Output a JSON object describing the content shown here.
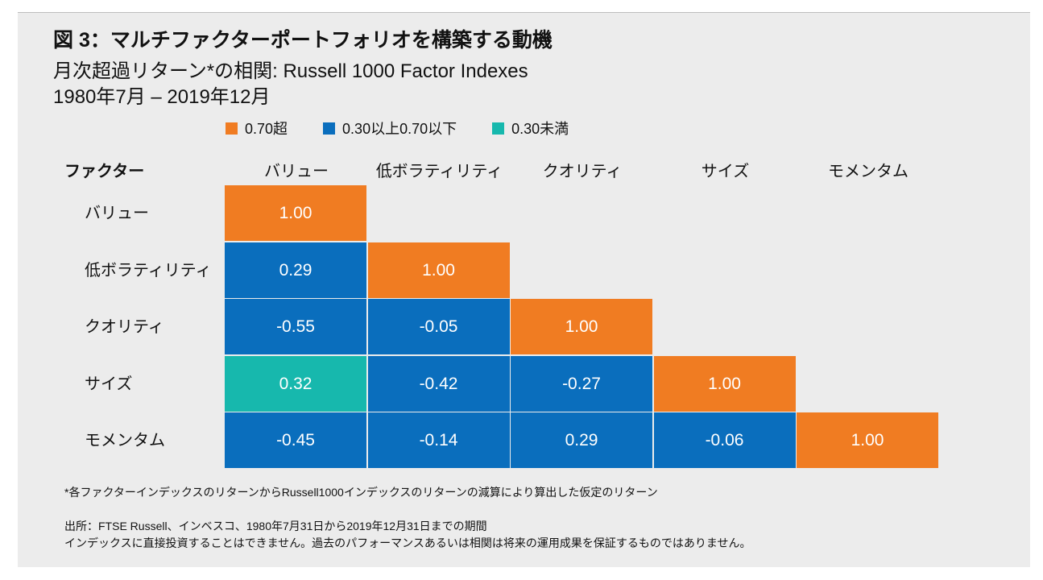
{
  "title": "図 3：マルチファクターポートフォリオを構築する動機",
  "subtitle": "月次超過リターン*の相関: Russell 1000 Factor Indexes",
  "period": "1980年7月 – 2019年12月",
  "colors": {
    "high": "#f07c22",
    "mid": "#0a6ebd",
    "low": "#17b8ad",
    "background": "#ececec"
  },
  "legend": [
    {
      "label": "0.70超",
      "color": "#f07c22"
    },
    {
      "label": "0.30以上0.70以下",
      "color": "#0a6ebd"
    },
    {
      "label": "0.30未満",
      "color": "#17b8ad"
    }
  ],
  "header_label": "ファクター",
  "chart_data": {
    "type": "heatmap",
    "title": "図 3：マルチファクターポートフォリオを構築する動機",
    "subtitle": "月次超過リターン*の相関: Russell 1000 Factor Indexes",
    "columns": [
      "バリュー",
      "低ボラティリティ",
      "クオリティ",
      "サイズ",
      "モメンタム"
    ],
    "rows": [
      "バリュー",
      "低ボラティリティ",
      "クオリティ",
      "サイズ",
      "モメンタム"
    ],
    "values": [
      [
        "1.00",
        null,
        null,
        null,
        null
      ],
      [
        "0.29",
        "1.00",
        null,
        null,
        null
      ],
      [
        "-0.55",
        "-0.05",
        "1.00",
        null,
        null
      ],
      [
        "0.32",
        "-0.42",
        "-0.27",
        "1.00",
        null
      ],
      [
        "-0.45",
        "-0.14",
        "0.29",
        "-0.06",
        "1.00"
      ]
    ],
    "categories": [
      [
        "high",
        null,
        null,
        null,
        null
      ],
      [
        "mid",
        "high",
        null,
        null,
        null
      ],
      [
        "mid",
        "mid",
        "high",
        null,
        null
      ],
      [
        "low",
        "mid",
        "mid",
        "high",
        null
      ],
      [
        "mid",
        "mid",
        "mid",
        "mid",
        "high"
      ]
    ]
  },
  "footnote": "*各ファクターインデックスのリターンからRussell1000インデックスのリターンの減算により算出した仮定のリターン",
  "source": "出所：FTSE Russell、インベスコ、1980年7月31日から2019年12月31日までの期間",
  "disclaimer": "インデックスに直接投資することはできません。過去のパフォーマンスあるいは相関は将来の運用成果を保証するものではありません。"
}
